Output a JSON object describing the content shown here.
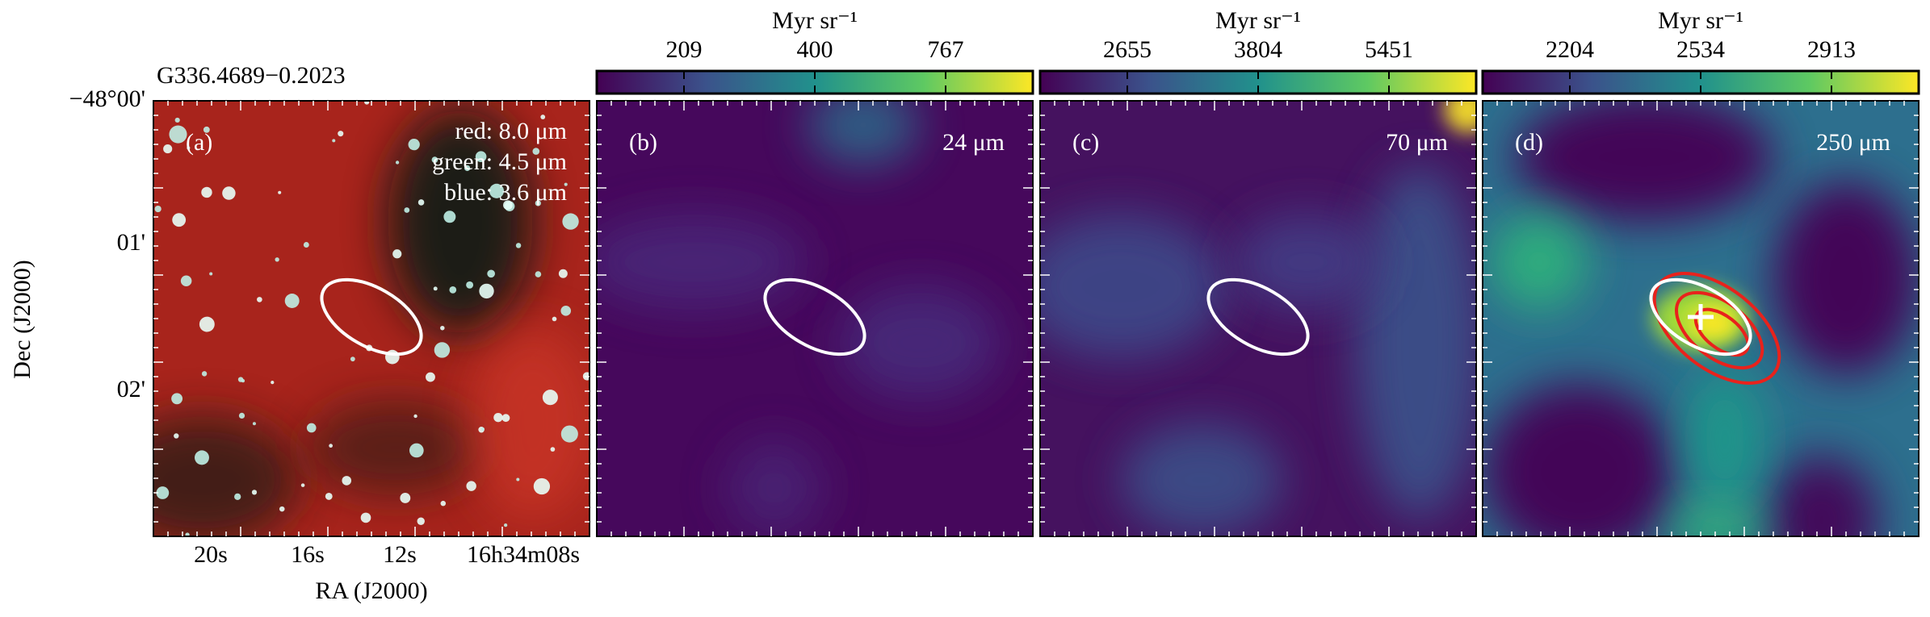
{
  "figure": {
    "title": "G336.4689−0.2023",
    "y_axis": {
      "label": "Dec (J2000)",
      "ticks": [
        "−48°00'",
        "01'",
        "02'"
      ]
    },
    "x_axis": {
      "label": "RA (J2000)",
      "ticks": [
        "20s",
        "16s",
        "12s",
        "16h34m08s"
      ]
    },
    "panels": [
      {
        "label": "(a)",
        "legend": [
          "red: 8.0 μm",
          "green: 4.5 μm",
          "blue: 3.6 μm"
        ]
      },
      {
        "label": "(b)",
        "band": "24 μm",
        "colorbar": {
          "unit": "Myr sr⁻¹",
          "ticks": [
            "209",
            "400",
            "767"
          ]
        }
      },
      {
        "label": "(c)",
        "band": "70 μm",
        "colorbar": {
          "unit": "Myr sr⁻¹",
          "ticks": [
            "2655",
            "3804",
            "5451"
          ]
        }
      },
      {
        "label": "(d)",
        "band": "250 μm",
        "colorbar": {
          "unit": "Myr sr⁻¹",
          "ticks": [
            "2204",
            "2534",
            "2913"
          ]
        }
      }
    ]
  }
}
